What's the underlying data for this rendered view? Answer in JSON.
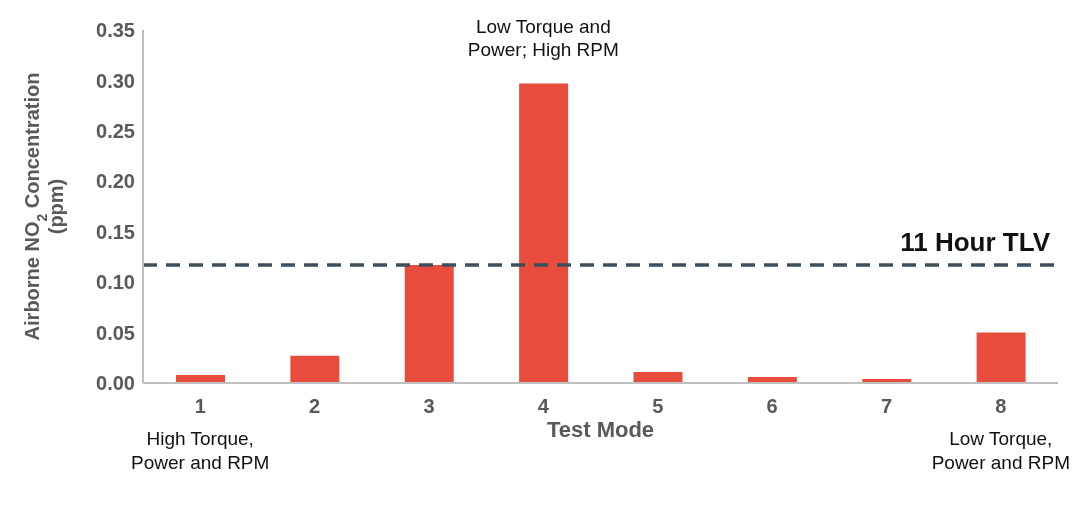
{
  "chart_data": {
    "type": "bar",
    "xlabel": "Test Mode",
    "ylabel": "Airborne NO$_{2}$ Concentration (ppm)",
    "categories": [
      "1",
      "2",
      "3",
      "4",
      "5",
      "6",
      "7",
      "8"
    ],
    "values": [
      0.008,
      0.027,
      0.117,
      0.297,
      0.011,
      0.006,
      0.004,
      0.05
    ],
    "color": "#e84c3d",
    "ylim": [
      0,
      0.35
    ],
    "yticks": [
      {
        "value": 0,
        "label": "0.00"
      },
      {
        "value": 0.05,
        "label": "0.05"
      },
      {
        "value": 0.1,
        "label": "0.10"
      },
      {
        "value": 0.15,
        "label": "0.15"
      },
      {
        "value": 0.2,
        "label": "0.20"
      },
      {
        "value": 0.25,
        "label": "0.25"
      },
      {
        "value": 0.3,
        "label": "0.30"
      },
      {
        "value": 0.35,
        "label": "0.35"
      }
    ],
    "grid": false,
    "legend": false,
    "ref_lines": [
      {
        "axis": "y",
        "value": 0.117,
        "label": "11 Hour TLV",
        "color": "#3d4f5c",
        "line_style": "dashed"
      }
    ],
    "annotations": [
      {
        "text": "Low Torque and\nPower; High RPM",
        "x": "4",
        "y": 0.297
      },
      "High Torque,\nPower and RPM",
      "Low Torque,\nPower and RPM"
    ]
  }
}
